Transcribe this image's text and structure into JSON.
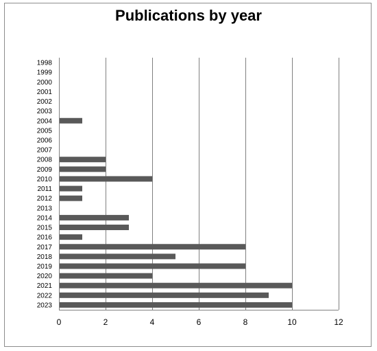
{
  "chart_data": {
    "type": "bar",
    "orientation": "horizontal",
    "title": "Publications by year",
    "xlabel": "",
    "ylabel": "",
    "xlim": [
      0,
      12
    ],
    "x_ticks": [
      0,
      2,
      4,
      6,
      8,
      10,
      12
    ],
    "grid": "vertical major gridlines",
    "bar_color": "#595959",
    "categories": [
      "1998",
      "1999",
      "2000",
      "2001",
      "2002",
      "2003",
      "2004",
      "2005",
      "2006",
      "2007",
      "2008",
      "2009",
      "2010",
      "2011",
      "2012",
      "2013",
      "2014",
      "2015",
      "2016",
      "2017",
      "2018",
      "2019",
      "2020",
      "2021",
      "2022",
      "2023"
    ],
    "values": [
      0,
      0,
      0,
      0,
      0,
      0,
      1,
      0,
      0,
      0,
      2,
      2,
      4,
      1,
      1,
      0,
      3,
      3,
      1,
      8,
      5,
      8,
      4,
      10,
      9,
      10
    ]
  }
}
